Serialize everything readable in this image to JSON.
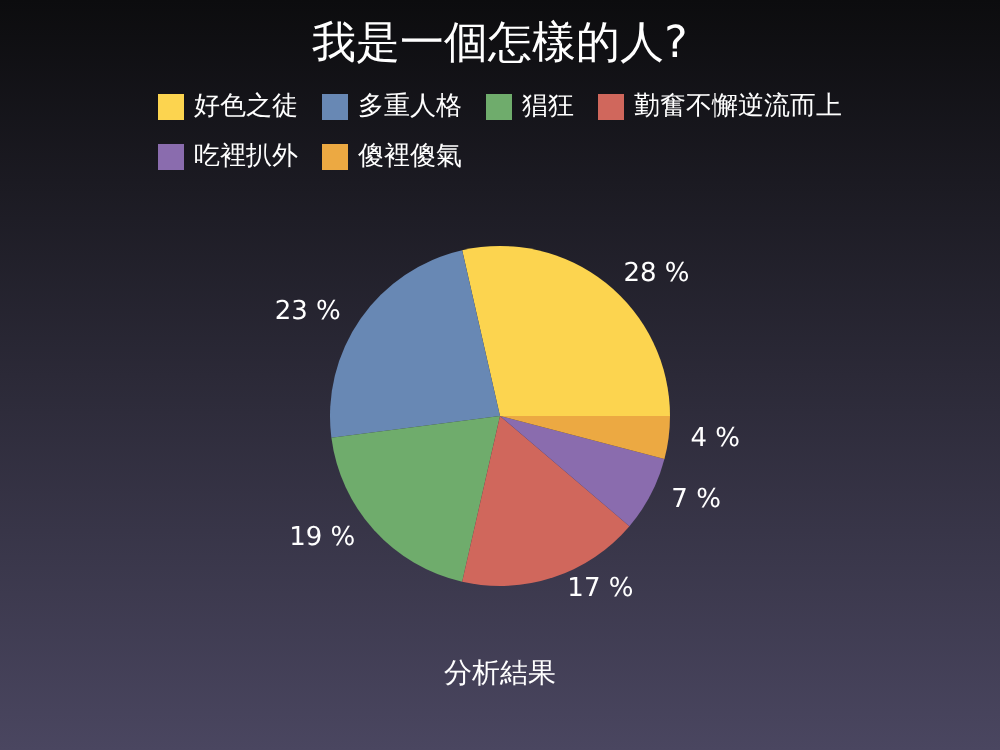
{
  "chart_data": {
    "type": "pie",
    "title": "我是一個怎樣的人?",
    "categories": [
      "好色之徒",
      "多重人格",
      "猖狂",
      "勤奮不懈逆流而上",
      "吃裡扒外",
      "傻裡傻氣"
    ],
    "values": [
      28,
      23,
      19,
      17,
      7,
      4
    ],
    "value_labels": [
      "28 %",
      "23 %",
      "19 %",
      "17 %",
      "7 %",
      "4 %"
    ],
    "colors": [
      "#fcd44f",
      "#6888b4",
      "#6fac6c",
      "#d0675c",
      "#8a6cae",
      "#eca942"
    ],
    "legend": "top",
    "annotations": [
      "分析結果"
    ]
  }
}
